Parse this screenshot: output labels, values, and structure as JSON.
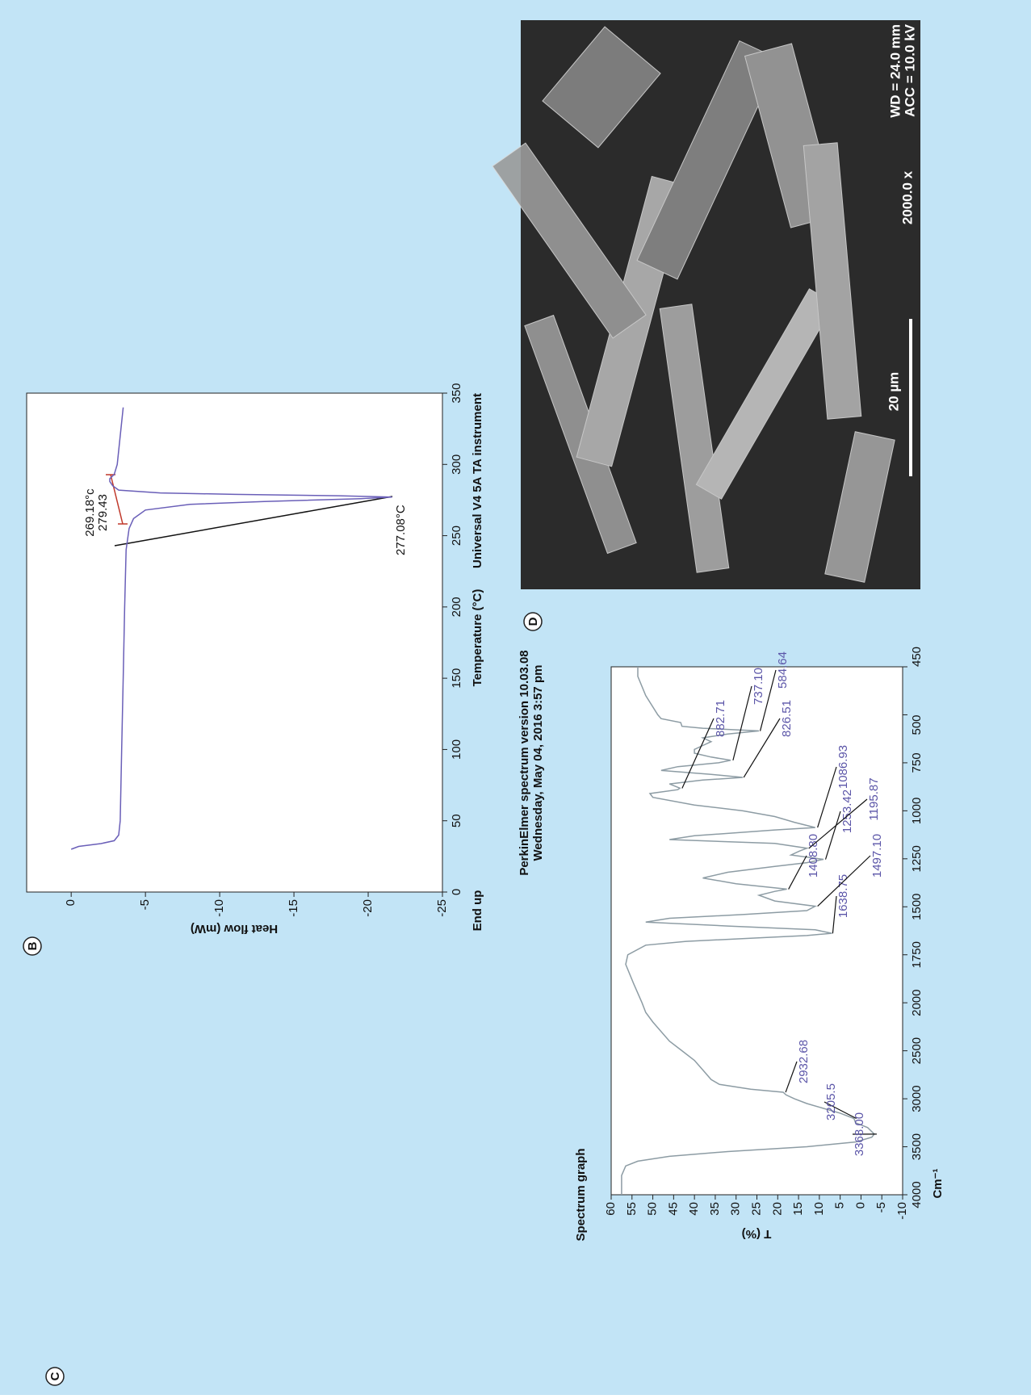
{
  "chart_data": [
    {
      "type": "line",
      "panel_label": "B",
      "x_label": "Temperature (°C)",
      "y_label": "Heat flow (mW)",
      "instrument": "Universal V4 5A TA instrument",
      "corner_label": "End up",
      "color": "#6a5fb8",
      "x": [
        30,
        32,
        34,
        36,
        40,
        50,
        100,
        150,
        200,
        240,
        255,
        262,
        268,
        272,
        274,
        276,
        277.08,
        278,
        279,
        280,
        282,
        285,
        288,
        290,
        293,
        300,
        320,
        340
      ],
      "values": [
        0,
        -0.5,
        -2,
        -2.9,
        -3.2,
        -3.3,
        -3.4,
        -3.5,
        -3.6,
        -3.7,
        -3.9,
        -4.2,
        -5,
        -8,
        -13,
        -19.5,
        -21.6,
        -18,
        -11,
        -6,
        -3.2,
        -2.8,
        -2.6,
        -2.6,
        -2.9,
        -3.1,
        -3.3,
        -3.5
      ],
      "xlim": [
        0,
        350
      ],
      "xticks": [
        0,
        50,
        100,
        150,
        200,
        250,
        300,
        350
      ],
      "ylim": [
        -25,
        3
      ],
      "yticks": [
        0,
        -5,
        -10,
        -15,
        -20,
        -25
      ],
      "annotations": [
        {
          "text": "269.18°c"
        },
        {
          "text": "279.43"
        },
        {
          "text": "277.08°C"
        }
      ]
    },
    {
      "type": "line",
      "panel_label": "C",
      "title": "Spectrum graph",
      "subtitle": [
        "PerkinElmer spectrum version 10.03.08",
        "Wednesday, May 04, 2016 3:57 pm"
      ],
      "x_label": "Cm⁻¹",
      "y_label": "T (%)",
      "color": "#8d9ca4",
      "annotation_color": "#5b55a8",
      "x": [
        4000,
        3800,
        3700,
        3650,
        3600,
        3550,
        3500,
        3450,
        3400,
        3368,
        3300,
        3250,
        3205,
        3150,
        3100,
        3050,
        3000,
        2960,
        2932,
        2900,
        2850,
        2800,
        2700,
        2600,
        2500,
        2400,
        2300,
        2200,
        2100,
        2000,
        1900,
        1800,
        1750,
        1700,
        1680,
        1660,
        1650,
        1638,
        1620,
        1600,
        1580,
        1560,
        1540,
        1520,
        1497,
        1470,
        1440,
        1420,
        1408,
        1380,
        1350,
        1320,
        1290,
        1270,
        1253,
        1230,
        1210,
        1195,
        1170,
        1150,
        1130,
        1100,
        1087,
        1060,
        1030,
        1000,
        970,
        930,
        910,
        890,
        882,
        860,
        840,
        826,
        810,
        790,
        770,
        750,
        737,
        720,
        700,
        680,
        660,
        640,
        620,
        600,
        584,
        570,
        560,
        540,
        520,
        500,
        480,
        460,
        450
      ],
      "values": [
        57.5,
        57.5,
        56.5,
        53.6,
        46,
        32,
        13,
        1.3,
        -2.6,
        -3.2,
        -1.6,
        1.3,
        1.7,
        5,
        9,
        13,
        16,
        18,
        18.7,
        26.5,
        34,
        36,
        38,
        40,
        43,
        46,
        48,
        50,
        51.7,
        52.6,
        54.6,
        56.5,
        56,
        51.7,
        42,
        22.6,
        13,
        7,
        11,
        32,
        51.7,
        46,
        28,
        13,
        11,
        20.7,
        24.5,
        20.7,
        17.8,
        30,
        38,
        32,
        20.7,
        13,
        9,
        16.8,
        14.8,
        13,
        20.7,
        46,
        40,
        20.7,
        11,
        16,
        20.7,
        28.4,
        40,
        50,
        50.7,
        44,
        43.5,
        46,
        38,
        28.4,
        36,
        48,
        44,
        34.2,
        31.3,
        36,
        40,
        40,
        38,
        36,
        38,
        32,
        24.5,
        38,
        43,
        43.3,
        48,
        48.8,
        51.7,
        53.6,
        53.6
      ],
      "xlim": [
        4000,
        450
      ],
      "xticks": [
        4000,
        3500,
        3000,
        2500,
        2000,
        1750,
        1500,
        1250,
        1000,
        750,
        500,
        450
      ],
      "ylim": [
        -10,
        60
      ],
      "yticks": [
        60,
        55,
        50,
        45,
        40,
        35,
        30,
        25,
        20,
        15,
        10,
        5,
        0,
        -5,
        -10
      ],
      "annotations": [
        {
          "x": 3368.0,
          "label": "3368.00"
        },
        {
          "x": 3205.5,
          "label": "3205.5"
        },
        {
          "x": 2932.68,
          "label": "2932.68"
        },
        {
          "x": 1638.75,
          "label": "1638.75"
        },
        {
          "x": 1497.1,
          "label": "1497.10"
        },
        {
          "x": 1408.8,
          "label": "1408.80"
        },
        {
          "x": 1253.42,
          "label": "1253.42"
        },
        {
          "x": 1195.87,
          "label": "1195.87"
        },
        {
          "x": 1086.93,
          "label": "1086.93"
        },
        {
          "x": 882.71,
          "label": "882.71"
        },
        {
          "x": 826.51,
          "label": "826.51"
        },
        {
          "x": 737.1,
          "label": "737.10"
        },
        {
          "x": 584.64,
          "label": "584.64"
        }
      ]
    }
  ],
  "image_panel": {
    "panel_label": "D",
    "scale_bar": "20 µm",
    "magnification": "2000.0 x",
    "wd": "WD = 24.0 mm",
    "acc": "ACC = 10.0 kV"
  }
}
